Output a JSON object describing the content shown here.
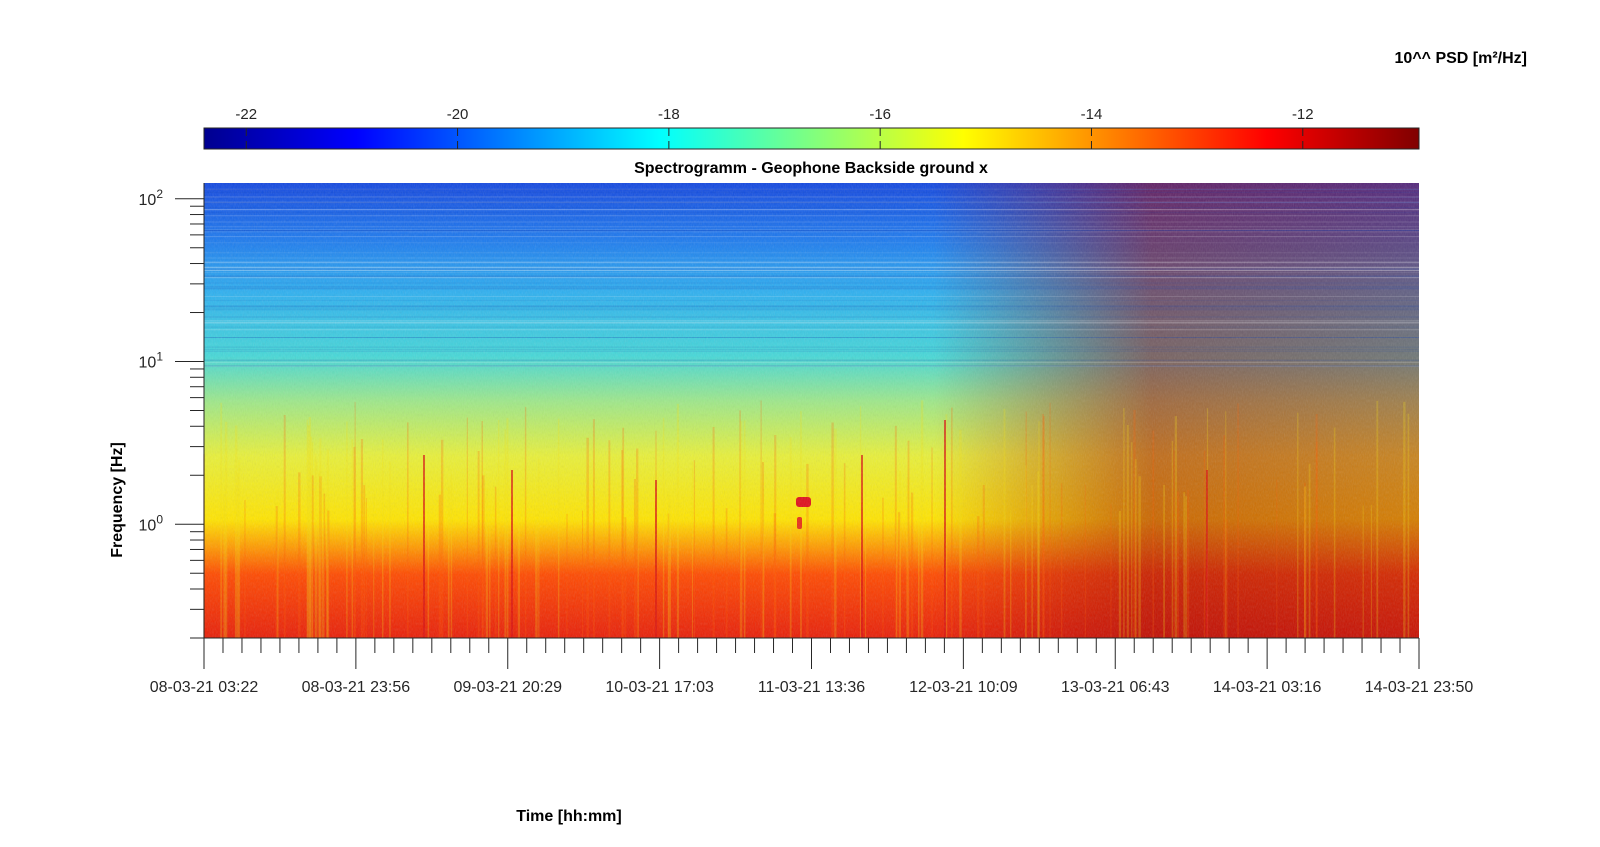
{
  "chart_data": {
    "type": "heatmap",
    "title": "Spectrogramm - Geophone Backside ground x",
    "xlabel": "Time [hh:mm]",
    "ylabel": "Frequency [Hz]",
    "yscale": "log",
    "ylim": [
      0.2,
      125
    ],
    "x_tick_labels": [
      "08-03-21 03:22",
      "08-03-21 23:56",
      "09-03-21 20:29",
      "10-03-21 17:03",
      "11-03-21 13:36",
      "12-03-21 10:09",
      "13-03-21 06:43",
      "14-03-21 03:16",
      "14-03-21 23:50"
    ],
    "y_ticks": [
      {
        "base": "10",
        "exp": "0",
        "value": 1
      },
      {
        "base": "10",
        "exp": "1",
        "value": 10
      },
      {
        "base": "10",
        "exp": "2",
        "value": 100
      }
    ],
    "colorbar": {
      "label": "10^^ PSD [m²/Hz]",
      "range": [
        -22.4,
        -10.9
      ],
      "ticks": [
        -22,
        -20,
        -18,
        -16,
        -14,
        -12
      ],
      "colormap": "jet",
      "placement": "top"
    },
    "grid": false,
    "description_values": {
      "low_freq_band_log10_psd": -11.8,
      "mid_freq_band_log10_psd": -14.6,
      "high_freq_band_log10_psd": -20.5
    }
  }
}
